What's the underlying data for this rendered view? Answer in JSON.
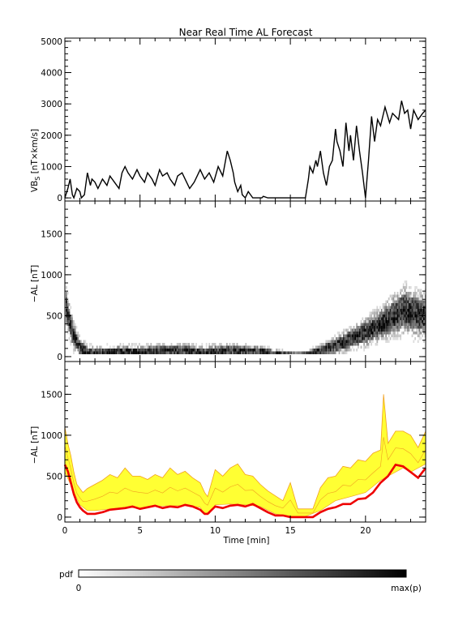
{
  "title": "Near Real Time AL Forecast",
  "colors": {
    "background": "#ffffff",
    "axes": "#000000",
    "vbs_line": "#000000",
    "median_line": "#ee0000",
    "band_fill": "#ffff33",
    "band_edge": "#f0a020"
  },
  "chart_data": [
    {
      "type": "line",
      "panel": "top",
      "ylabel_main": "VB",
      "ylabel_sub": "S",
      "ylabel_rest": " [nT×km/s]",
      "ylim": [
        -100,
        5100
      ],
      "yticks": [
        0,
        1000,
        2000,
        3000,
        4000,
        5000
      ],
      "xlim": [
        0,
        24
      ],
      "series": [
        {
          "x": [
            0,
            0.2,
            0.35,
            0.5,
            0.6,
            0.8,
            1.0,
            1.1,
            1.3,
            1.5,
            1.7,
            1.8,
            2.0,
            2.2,
            2.5,
            2.8,
            3.0,
            3.3,
            3.6,
            3.8,
            4.0,
            4.2,
            4.5,
            4.8,
            5.0,
            5.3,
            5.5,
            5.8,
            6.0,
            6.3,
            6.5,
            6.8,
            7.0,
            7.3,
            7.5,
            7.8,
            8.0,
            8.3,
            8.6,
            8.8,
            9.0,
            9.3,
            9.6,
            9.9,
            10.2,
            10.5,
            10.8,
            11.0,
            11.2,
            11.3,
            11.5,
            11.7,
            11.8,
            12.0,
            12.2,
            12.5,
            12.6,
            12.8,
            13.0,
            13.1,
            13.2,
            13.5,
            14.0,
            15.0,
            16.0,
            16.2,
            16.3,
            16.5,
            16.7,
            16.8,
            17.0,
            17.2,
            17.4,
            17.6,
            17.8,
            18.0,
            18.1,
            18.3,
            18.5,
            18.7,
            18.9,
            19.0,
            19.2,
            19.4,
            19.6,
            19.8,
            20.0,
            20.2,
            20.4,
            20.6,
            20.8,
            21.0,
            21.3,
            21.6,
            21.8,
            22.0,
            22.2,
            22.4,
            22.6,
            22.8,
            23.0,
            23.2,
            23.5,
            23.8,
            24.0
          ],
          "values": [
            0,
            300,
            600,
            100,
            0,
            300,
            200,
            0,
            100,
            800,
            400,
            600,
            500,
            300,
            600,
            400,
            700,
            500,
            300,
            800,
            1000,
            800,
            600,
            900,
            700,
            500,
            800,
            600,
            400,
            900,
            700,
            800,
            600,
            400,
            700,
            800,
            600,
            300,
            500,
            700,
            900,
            600,
            800,
            500,
            1000,
            700,
            1500,
            1200,
            800,
            500,
            200,
            400,
            100,
            0,
            200,
            0,
            0,
            0,
            0,
            0,
            50,
            0,
            0,
            0,
            0,
            600,
            1000,
            800,
            1200,
            1000,
            1500,
            800,
            400,
            1000,
            1200,
            2200,
            1800,
            1500,
            1000,
            2400,
            1500,
            2000,
            1200,
            2300,
            1500,
            800,
            0,
            1200,
            2600,
            1800,
            2500,
            2300,
            2900,
            2400,
            2700,
            2600,
            2500,
            3100,
            2700,
            2800,
            2200,
            2800,
            2500,
            2700,
            2800
          ]
        }
      ]
    },
    {
      "type": "heatmap",
      "panel": "middle",
      "ylabel": "−AL [nT]",
      "ylim": [
        -60,
        1900
      ],
      "yticks": [
        0,
        500,
        1000,
        1500
      ],
      "xlim": [
        0,
        24
      ],
      "median_x": [
        0,
        0.5,
        1,
        1.5,
        2,
        3,
        4,
        5,
        6,
        7,
        8,
        9,
        10,
        11,
        12,
        13,
        14,
        15,
        16,
        17,
        18,
        19,
        20,
        21,
        22,
        22.5,
        23,
        24
      ],
      "median_y": [
        620,
        250,
        80,
        30,
        20,
        30,
        40,
        30,
        50,
        60,
        60,
        30,
        40,
        60,
        50,
        50,
        20,
        5,
        5,
        60,
        120,
        200,
        280,
        380,
        500,
        560,
        520,
        480
      ],
      "spread_y": [
        350,
        250,
        150,
        120,
        100,
        100,
        110,
        110,
        110,
        100,
        100,
        100,
        110,
        100,
        90,
        60,
        40,
        30,
        30,
        80,
        150,
        200,
        250,
        300,
        400,
        450,
        450,
        400
      ]
    },
    {
      "type": "area",
      "panel": "bottom",
      "ylabel": "−AL [nT]",
      "ylim": [
        -60,
        1900
      ],
      "yticks": [
        0,
        500,
        1000,
        1500
      ],
      "xlim": [
        0,
        24
      ],
      "xticks": [
        0,
        5,
        10,
        15,
        20
      ],
      "xlabel": "Time [min]",
      "series": [
        {
          "role": "median",
          "x": [
            0,
            0.2,
            0.4,
            0.6,
            0.8,
            1.0,
            1.2,
            1.5,
            2.0,
            2.5,
            3.0,
            3.5,
            4.0,
            4.5,
            5.0,
            5.5,
            6.0,
            6.5,
            7.0,
            7.5,
            8.0,
            8.5,
            9.0,
            9.3,
            9.5,
            10.0,
            10.5,
            11.0,
            11.5,
            12.0,
            12.5,
            13.0,
            13.5,
            14.0,
            14.5,
            15.0,
            15.5,
            16.0,
            16.5,
            17.0,
            17.5,
            18.0,
            18.5,
            19.0,
            19.5,
            20.0,
            20.5,
            21.0,
            21.5,
            22.0,
            22.5,
            23.0,
            23.5,
            24.0
          ],
          "values": [
            640,
            560,
            420,
            280,
            180,
            120,
            80,
            40,
            40,
            60,
            90,
            100,
            110,
            130,
            100,
            120,
            140,
            110,
            130,
            120,
            150,
            130,
            90,
            40,
            40,
            130,
            110,
            140,
            150,
            130,
            160,
            110,
            60,
            20,
            20,
            0,
            0,
            0,
            0,
            60,
            100,
            120,
            160,
            160,
            220,
            230,
            300,
            420,
            500,
            640,
            620,
            550,
            480,
            600
          ]
        },
        {
          "role": "upper",
          "x": [
            0,
            0.2,
            0.4,
            0.6,
            0.8,
            1.0,
            1.2,
            1.5,
            2.0,
            2.5,
            3.0,
            3.5,
            4.0,
            4.5,
            5.0,
            5.5,
            6.0,
            6.5,
            7.0,
            7.5,
            8.0,
            8.5,
            9.0,
            9.3,
            9.5,
            10.0,
            10.5,
            11.0,
            11.5,
            12.0,
            12.5,
            13.0,
            13.5,
            14.0,
            14.5,
            15.0,
            15.5,
            16.0,
            16.5,
            17.0,
            17.5,
            18.0,
            18.5,
            19.0,
            19.5,
            20.0,
            20.5,
            21.0,
            21.2,
            21.5,
            22.0,
            22.5,
            23.0,
            23.5,
            24.0
          ],
          "values": [
            1100,
            900,
            750,
            550,
            400,
            350,
            300,
            350,
            400,
            450,
            520,
            480,
            600,
            500,
            500,
            460,
            520,
            480,
            600,
            520,
            560,
            480,
            420,
            300,
            250,
            580,
            500,
            600,
            650,
            520,
            500,
            400,
            320,
            260,
            200,
            420,
            100,
            100,
            100,
            360,
            480,
            500,
            620,
            600,
            700,
            680,
            780,
            820,
            1500,
            900,
            1050,
            1050,
            1000,
            850,
            1050
          ]
        },
        {
          "role": "lower",
          "x": [
            0,
            0.5,
            1,
            1.5,
            2,
            3,
            4,
            5,
            6,
            7,
            8,
            9,
            9.3,
            9.6,
            10,
            11,
            12,
            13,
            14,
            15,
            16,
            17,
            18,
            19,
            20,
            21,
            22,
            22.5,
            23,
            24
          ],
          "values": [
            550,
            350,
            150,
            80,
            80,
            100,
            120,
            110,
            130,
            140,
            140,
            120,
            40,
            40,
            150,
            160,
            150,
            130,
            40,
            10,
            10,
            80,
            200,
            250,
            300,
            450,
            550,
            600,
            550,
            650
          ]
        }
      ]
    }
  ],
  "colorbar": {
    "label": "pdf",
    "min_label": "0",
    "max_label": "max(p)"
  }
}
